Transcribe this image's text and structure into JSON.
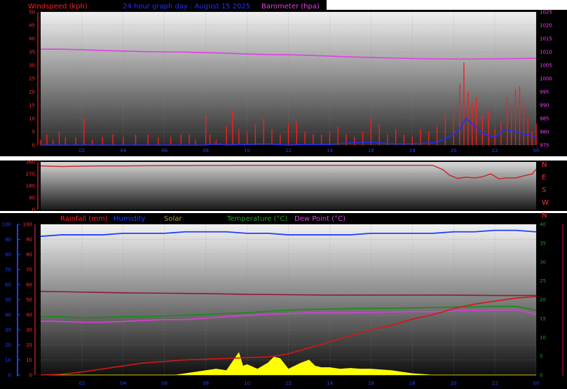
{
  "header": {
    "windspeed_label": "Windspeed (kph)",
    "date_title": "24 hour graph day : August 15 2025",
    "barometer_label": "Barometer (hpa)"
  },
  "bottom_header": {
    "rainfall_label": "Rainfall (mm)",
    "humidity_label": "Humidity",
    "solar_label": "Solar",
    "temperature_label": "Temperature (°C)",
    "dewpoint_label": "Dew Point (°C)"
  },
  "colors": {
    "windspeed": "#ff1a1a",
    "wind_avg": "#2030ff",
    "barometer": "#e040e0",
    "direction": "#d02020",
    "rainfall": "#d01818",
    "humidity": "#2040ff",
    "solar": "#ffff00",
    "temperature": "#1e8a1e",
    "dewpoint": "#d040d0",
    "maroon_line": "#8a1c3c"
  },
  "chart_data": [
    {
      "type": "line",
      "name": "wind_barometer",
      "x_tick_labels": [
        "02",
        "04",
        "06",
        "08",
        "10",
        "12",
        "14",
        "16",
        "18",
        "20",
        "22",
        "00"
      ],
      "y_left_ticks": [
        "0",
        "5",
        "10",
        "15",
        "20",
        "25",
        "30",
        "35",
        "40",
        "45",
        "50"
      ],
      "y_left_range": [
        0,
        50
      ],
      "y_right_ticks": [
        "975",
        "980",
        "985",
        "990",
        "995",
        "1000",
        "1005",
        "1010",
        "1015",
        "1020",
        "1025"
      ],
      "y_right_range": [
        975,
        1025
      ],
      "series": [
        {
          "name": "Windspeed (kph)",
          "x": [
            0,
            0.3,
            0.6,
            0.9,
            1.2,
            1.7,
            2.1,
            2.5,
            3.0,
            3.5,
            4.0,
            4.6,
            5.2,
            5.7,
            6.3,
            6.8,
            7.2,
            7.5,
            8.0,
            8.2,
            8.5,
            9.0,
            9.3,
            9.6,
            10.0,
            10.4,
            10.8,
            11.2,
            11.6,
            12.0,
            12.4,
            12.8,
            13.2,
            13.6,
            14.0,
            14.4,
            14.8,
            15.2,
            15.6,
            16.0,
            16.4,
            16.8,
            17.2,
            17.6,
            18.0,
            18.4,
            18.8,
            19.2,
            19.6,
            20.0,
            20.3,
            20.5,
            20.7,
            20.9,
            21.1,
            21.4,
            21.7,
            22.0,
            22.3,
            22.6,
            22.8,
            23.0,
            23.2,
            23.4,
            23.6,
            23.8,
            24.0
          ],
          "y": [
            2,
            4,
            2,
            5,
            3,
            3,
            10,
            2,
            3,
            4,
            3,
            4,
            4,
            3,
            3,
            4,
            4,
            2,
            11,
            4,
            2,
            7,
            13,
            6,
            5,
            8,
            10,
            6,
            4,
            8,
            9,
            5,
            4,
            4,
            5,
            7,
            4,
            3,
            5,
            10,
            8,
            4,
            6,
            4,
            3,
            6,
            5,
            7,
            12,
            14,
            23,
            31,
            20,
            16,
            18,
            11,
            13,
            6,
            9,
            18,
            15,
            21,
            22,
            16,
            10,
            5,
            8
          ]
        },
        {
          "name": "Wind average",
          "x": [
            0,
            1,
            2,
            3,
            4,
            5,
            6,
            7,
            8,
            8.5,
            9,
            10,
            11,
            12,
            13,
            14,
            15,
            16,
            17,
            18,
            19,
            19.5,
            20,
            20.3,
            20.6,
            20.9,
            21.2,
            21.5,
            22,
            22.5,
            23,
            23.5,
            24
          ],
          "y": [
            0,
            0,
            0,
            0,
            0,
            0,
            0,
            0,
            0,
            0.5,
            0,
            0.3,
            0.5,
            0,
            0.3,
            0.3,
            0.8,
            1,
            0.5,
            0.5,
            0.8,
            2,
            4,
            6,
            10,
            8,
            6,
            4,
            3,
            6,
            5,
            4,
            3
          ]
        },
        {
          "name": "Barometer (hpa)",
          "x": [
            0,
            1,
            2,
            3,
            4,
            5,
            6,
            7,
            8,
            9,
            10,
            11,
            12,
            13,
            14,
            15,
            16,
            17,
            18,
            19,
            20,
            21,
            22,
            23,
            24
          ],
          "y": [
            1011,
            1011,
            1010.8,
            1010.5,
            1010.3,
            1010.1,
            1010,
            1009.9,
            1009.7,
            1009.5,
            1009.2,
            1009,
            1008.9,
            1008.7,
            1008.4,
            1008.1,
            1007.9,
            1007.7,
            1007.5,
            1007.4,
            1007.3,
            1007.3,
            1007.4,
            1007.5,
            1007.6
          ]
        }
      ]
    },
    {
      "type": "line",
      "name": "wind_direction",
      "y_left_ticks": [
        "0",
        "90",
        "180",
        "270",
        "360"
      ],
      "y_left_range": [
        0,
        360
      ],
      "y_right_ticks": [
        "N",
        "W",
        "S",
        "E",
        "N"
      ],
      "series": [
        {
          "name": "Wind direction",
          "x": [
            0,
            1,
            2,
            3,
            4,
            5,
            6,
            7,
            8,
            9,
            10,
            11,
            12,
            13,
            14,
            15,
            16,
            17,
            18,
            19,
            19.5,
            19.8,
            20.2,
            20.6,
            21.0,
            21.4,
            21.8,
            22.2,
            22.6,
            23.0,
            23.4,
            23.8,
            24
          ],
          "y": [
            330,
            325,
            328,
            330,
            330,
            331,
            332,
            332,
            333,
            333,
            334,
            334,
            334,
            334,
            334,
            334,
            334,
            334,
            334,
            334,
            300,
            260,
            235,
            245,
            238,
            248,
            270,
            232,
            240,
            238,
            255,
            268,
            305
          ]
        }
      ]
    },
    {
      "type": "line",
      "name": "rain_humidity_temp",
      "x_tick_labels": [
        "02",
        "04",
        "06",
        "08",
        "10",
        "12",
        "14",
        "16",
        "18",
        "20",
        "22",
        "00"
      ],
      "y_left_ticks": [
        "0",
        "10",
        "20",
        "30",
        "40",
        "50",
        "60",
        "70",
        "80",
        "90",
        "100"
      ],
      "y_left_range": [
        0,
        100
      ],
      "y_right_ticks": [
        "0",
        "5",
        "10",
        "15",
        "20",
        "25",
        "30",
        "35",
        "40"
      ],
      "y_right_range": [
        0,
        40
      ],
      "series": [
        {
          "name": "Rainfall (mm)",
          "x": [
            0,
            1,
            2,
            3,
            4,
            5,
            6,
            7,
            8,
            9,
            10,
            11,
            12,
            13,
            14,
            15,
            16,
            17,
            18,
            19,
            20,
            21,
            22,
            23,
            24
          ],
          "y": [
            0,
            0.5,
            2,
            4,
            6,
            8,
            9,
            10,
            10.5,
            11,
            11.5,
            12,
            14,
            18,
            22,
            26,
            30,
            33,
            37,
            40,
            44,
            47,
            49,
            51,
            52
          ]
        },
        {
          "name": "Humidity",
          "x": [
            0,
            1,
            2,
            3,
            4,
            5,
            6,
            7,
            8,
            9,
            10,
            11,
            12,
            13,
            14,
            15,
            16,
            17,
            18,
            19,
            20,
            21,
            22,
            23,
            24
          ],
          "y": [
            92,
            93,
            93,
            93,
            94,
            94,
            94,
            95,
            95,
            95,
            94,
            94,
            93,
            93,
            93,
            93,
            94,
            94,
            94,
            94,
            95,
            95,
            96,
            96,
            95
          ]
        },
        {
          "name": "Temperature (°C)",
          "x": [
            0,
            1,
            2,
            3,
            4,
            5,
            6,
            7,
            8,
            9,
            10,
            11,
            12,
            13,
            14,
            15,
            16,
            17,
            18,
            19,
            20,
            21,
            22,
            23,
            24
          ],
          "y": [
            15.5,
            15.5,
            15.2,
            15.3,
            15.5,
            15.5,
            15.7,
            15.9,
            16.1,
            16.3,
            16.5,
            16.9,
            17.2,
            17.4,
            17.5,
            17.6,
            17.7,
            17.7,
            17.8,
            17.9,
            18,
            18.1,
            18.2,
            18.2,
            17.2
          ]
        },
        {
          "name": "Dew Point (°C)",
          "x": [
            0,
            1,
            2,
            3,
            4,
            5,
            6,
            7,
            8,
            9,
            10,
            11,
            12,
            13,
            14,
            15,
            16,
            17,
            18,
            19,
            20,
            21,
            22,
            23,
            24
          ],
          "y": [
            14.3,
            14.2,
            14,
            14,
            14.2,
            14.5,
            14.7,
            14.7,
            15.1,
            15.5,
            15.8,
            16.1,
            16.3,
            16.5,
            16.5,
            16.5,
            16.6,
            16.7,
            16.8,
            16.8,
            17,
            17.2,
            17.2,
            17.3,
            16.2
          ]
        },
        {
          "name": "Maroon trace",
          "x": [
            0,
            2,
            4,
            6,
            8,
            10,
            12,
            14,
            16,
            18,
            20,
            22,
            24
          ],
          "y": [
            22.2,
            22,
            21.8,
            21.7,
            21.6,
            21.4,
            21.3,
            21.2,
            21.2,
            21.2,
            21.2,
            21.1,
            21.1
          ]
        },
        {
          "name": "Solar",
          "x": [
            0,
            6.5,
            7,
            7.5,
            8,
            8.5,
            9,
            9.3,
            9.6,
            9.8,
            10,
            10.5,
            11,
            11.3,
            11.6,
            12,
            12.3,
            12.6,
            13,
            13.3,
            13.6,
            14,
            14.5,
            15,
            15.5,
            16,
            16.5,
            17,
            17.5,
            18,
            18.5,
            19,
            24
          ],
          "y": [
            0,
            0,
            1,
            2,
            3,
            4,
            3,
            9,
            15,
            6,
            7,
            4,
            8,
            12,
            11,
            4,
            6,
            8,
            10,
            6,
            5,
            5,
            4,
            4.5,
            4,
            4,
            3.5,
            3,
            2,
            1,
            0.5,
            0,
            0
          ]
        }
      ]
    }
  ]
}
